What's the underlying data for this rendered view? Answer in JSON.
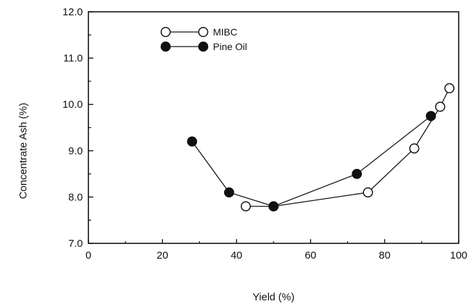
{
  "chart_data": {
    "type": "line",
    "xlabel": "Yield (%)",
    "ylabel": "Concentrate Ash (%)",
    "xlim": [
      0,
      100
    ],
    "ylim": [
      7.0,
      12.0
    ],
    "x_ticks": [
      "0",
      "20",
      "40",
      "60",
      "80",
      "100"
    ],
    "y_ticks": [
      "7.0",
      "8.0",
      "9.0",
      "10.0",
      "11.0",
      "12.0"
    ],
    "grid": false,
    "legend_position": "top-left",
    "series": [
      {
        "name": "MIBC",
        "marker": "open-circle",
        "color": "#111111",
        "x": [
          42.5,
          50,
          75.5,
          88,
          95,
          97.5
        ],
        "y": [
          7.8,
          7.8,
          8.1,
          9.05,
          9.95,
          10.35
        ]
      },
      {
        "name": "Pine Oil",
        "marker": "filled-circle",
        "color": "#111111",
        "x": [
          28,
          38,
          50,
          72.5,
          92.5
        ],
        "y": [
          9.2,
          8.1,
          7.8,
          8.5,
          9.75
        ]
      }
    ]
  }
}
